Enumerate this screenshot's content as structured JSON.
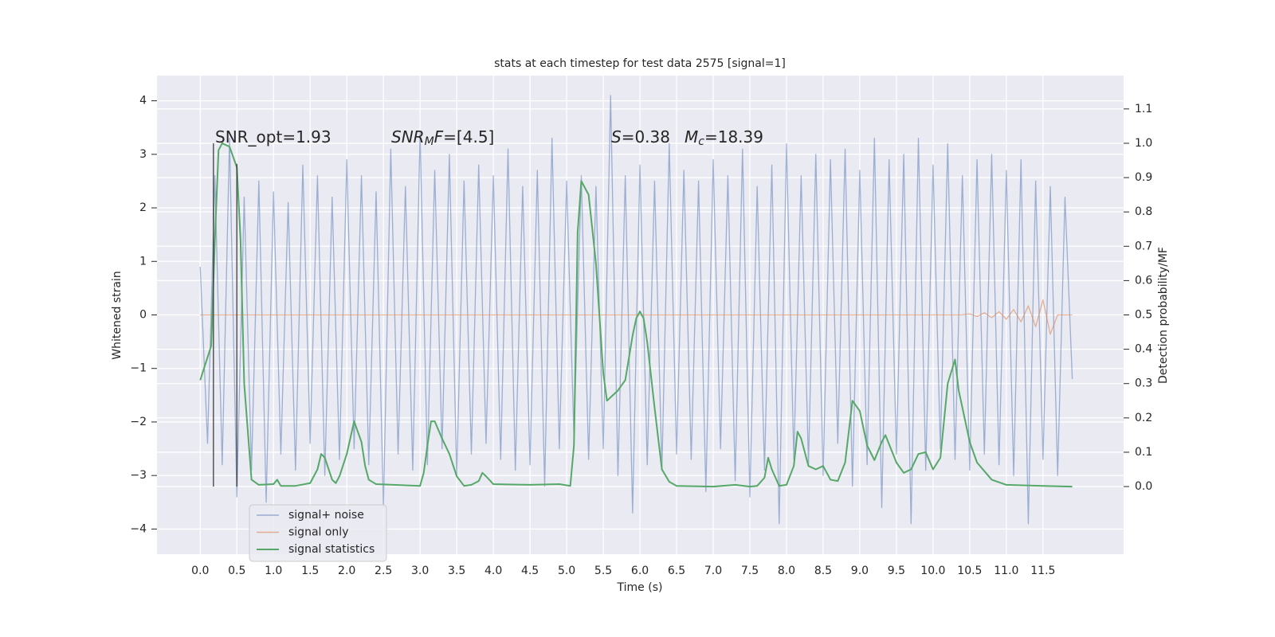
{
  "chart_data": {
    "type": "line",
    "title": "stats at each timestep for test data 2575 [signal=1]",
    "x_label": "Time (s)",
    "y_label": "Whitened strain",
    "y2_label": "Detection probability/MF",
    "grid": true,
    "legend": "lower left",
    "xlim": [
      -0.59,
      12.6
    ],
    "ylim": [
      -4.47,
      4.47
    ],
    "y2lim": [
      -0.197,
      1.197
    ],
    "xticks": [
      {
        "value": 0,
        "label": "0.0"
      },
      {
        "value": 0.5,
        "label": "0.5"
      },
      {
        "value": 1,
        "label": "1.0"
      },
      {
        "value": 1.5,
        "label": "1.5"
      },
      {
        "value": 2,
        "label": "2.0"
      },
      {
        "value": 2.5,
        "label": "2.5"
      },
      {
        "value": 3,
        "label": "3.0"
      },
      {
        "value": 3.5,
        "label": "3.5"
      },
      {
        "value": 4,
        "label": "4.0"
      },
      {
        "value": 4.5,
        "label": "4.5"
      },
      {
        "value": 5,
        "label": "5.0"
      },
      {
        "value": 5.5,
        "label": "5.5"
      },
      {
        "value": 6,
        "label": "6.0"
      },
      {
        "value": 6.5,
        "label": "6.5"
      },
      {
        "value": 7,
        "label": "7.0"
      },
      {
        "value": 7.5,
        "label": "7.5"
      },
      {
        "value": 8,
        "label": "8.0"
      },
      {
        "value": 8.5,
        "label": "8.5"
      },
      {
        "value": 9,
        "label": "9.0"
      },
      {
        "value": 9.5,
        "label": "9.5"
      },
      {
        "value": 10,
        "label": "10.0"
      },
      {
        "value": 10.5,
        "label": "10.5"
      },
      {
        "value": 11,
        "label": "11.0"
      },
      {
        "value": 11.5,
        "label": "11.5"
      }
    ],
    "yticks": [
      {
        "value": -4,
        "label": "−4"
      },
      {
        "value": -3,
        "label": "−3"
      },
      {
        "value": -2,
        "label": "−2"
      },
      {
        "value": -1,
        "label": "−1"
      },
      0,
      1,
      2,
      3,
      4
    ],
    "y2ticks": [
      {
        "value": 0,
        "label": "0.0"
      },
      {
        "value": 0.1,
        "label": "0.1"
      },
      {
        "value": 0.2,
        "label": "0.2"
      },
      {
        "value": 0.3,
        "label": "0.3"
      },
      {
        "value": 0.4,
        "label": "0.4"
      },
      {
        "value": 0.5,
        "label": "0.5"
      },
      {
        "value": 0.6,
        "label": "0.6"
      },
      {
        "value": 0.7,
        "label": "0.7"
      },
      {
        "value": 0.8,
        "label": "0.8"
      },
      {
        "value": 0.9,
        "label": "0.9"
      },
      {
        "value": 1,
        "label": "1.0"
      },
      {
        "value": 1.1,
        "label": "1.1"
      }
    ],
    "x": [
      0,
      0.1,
      0.2,
      0.3,
      0.4,
      0.5,
      0.6,
      0.7,
      0.8,
      0.9,
      1,
      1.1,
      1.2,
      1.3,
      1.4,
      1.5,
      1.6,
      1.7,
      1.8,
      1.9,
      2,
      2.1,
      2.2,
      2.3,
      2.4,
      2.5,
      2.6,
      2.7,
      2.8,
      2.9,
      3,
      3.1,
      3.2,
      3.3,
      3.4,
      3.5,
      3.6,
      3.7,
      3.8,
      3.9,
      4,
      4.1,
      4.2,
      4.3,
      4.4,
      4.5,
      4.6,
      4.7,
      4.8,
      4.9,
      5,
      5.1,
      5.2,
      5.3,
      5.4,
      5.5,
      5.6,
      5.7,
      5.8,
      5.9,
      6,
      6.1,
      6.2,
      6.3,
      6.4,
      6.5,
      6.6,
      6.7,
      6.8,
      6.9,
      7,
      7.1,
      7.2,
      7.3,
      7.4,
      7.5,
      7.6,
      7.7,
      7.8,
      7.9,
      8,
      8.1,
      8.2,
      8.3,
      8.4,
      8.5,
      8.6,
      8.7,
      8.8,
      8.9,
      9,
      9.1,
      9.2,
      9.3,
      9.4,
      9.5,
      9.6,
      9.7,
      9.8,
      9.9,
      10,
      10.1,
      10.2,
      10.3,
      10.4,
      10.5,
      10.6,
      10.7,
      10.8,
      10.9,
      11,
      11.1,
      11.2,
      11.3,
      11.4,
      11.5,
      11.6,
      11.7,
      11.8,
      11.9
    ],
    "series": [
      {
        "name": "signal+ noise",
        "color": "#4c72b0",
        "opacity": 0.5,
        "values": [
          0.9,
          -2.4,
          2.6,
          -2.8,
          3.3,
          -3.4,
          2.2,
          -2.9,
          2.5,
          -3.5,
          2.3,
          -2.6,
          2.1,
          -2.9,
          2.8,
          -2.4,
          2.6,
          -3.0,
          2.2,
          -2.7,
          2.9,
          -2.5,
          2.6,
          -2.8,
          2.3,
          -3.6,
          3.1,
          -2.6,
          2.4,
          -2.9,
          3.4,
          -2.8,
          2.7,
          -2.5,
          3.0,
          -3.0,
          2.5,
          -2.6,
          2.8,
          -2.4,
          2.6,
          -2.7,
          3.1,
          -2.9,
          2.4,
          -2.8,
          2.7,
          -3.2,
          3.3,
          -2.5,
          2.5,
          -2.3,
          2.6,
          -2.7,
          2.4,
          -2.5,
          4.1,
          -3.0,
          2.6,
          -3.7,
          2.8,
          -2.8,
          2.5,
          -2.9,
          3.2,
          -2.6,
          2.7,
          -2.7,
          2.5,
          -3.3,
          2.9,
          -2.5,
          2.6,
          -3.1,
          3.1,
          -3.4,
          2.4,
          -2.9,
          2.8,
          -3.9,
          3.2,
          -2.7,
          2.6,
          -2.8,
          3.0,
          -3.0,
          2.9,
          -2.4,
          3.1,
          -3.2,
          2.7,
          -2.8,
          3.3,
          -3.6,
          2.9,
          -2.6,
          3.0,
          -3.9,
          3.3,
          -2.9,
          2.8,
          -2.5,
          3.2,
          -2.7,
          2.6,
          -2.9,
          2.9,
          -2.6,
          3.0,
          -2.8,
          2.7,
          -3.0,
          2.9,
          -3.9,
          2.5,
          -2.7,
          2.4,
          -3.0,
          2.2,
          -1.2
        ]
      },
      {
        "name": "signal only",
        "color": "#dd8452",
        "opacity": 0.6,
        "values": [
          0,
          0,
          0,
          0,
          0,
          0,
          0,
          0,
          0,
          0,
          0,
          0,
          0,
          0,
          0,
          0,
          0,
          0,
          0,
          0,
          0,
          0,
          0,
          0,
          0,
          0,
          0,
          0,
          0,
          0,
          0,
          0,
          0,
          0,
          0,
          0,
          0,
          0,
          0,
          0,
          0,
          0,
          0,
          0,
          0,
          0,
          0,
          0,
          0,
          0,
          0,
          0,
          0,
          0,
          0,
          0,
          0,
          0,
          0,
          0,
          0,
          0,
          0,
          0,
          0,
          0,
          0,
          0,
          0,
          0,
          0,
          0,
          0,
          0,
          0,
          0,
          0,
          0,
          0,
          0,
          0,
          0,
          0,
          0,
          0,
          0,
          0,
          0,
          0,
          0,
          0,
          0,
          0,
          0,
          0,
          0,
          0,
          0,
          0,
          0,
          0,
          0,
          0,
          0,
          0,
          0.02,
          -0.03,
          0.04,
          -0.05,
          0.06,
          -0.08,
          0.1,
          -0.13,
          0.17,
          -0.22,
          0.28,
          -0.36,
          0,
          0,
          0
        ]
      },
      {
        "name": "signal statistics",
        "color": "#55a868",
        "opacity": 1,
        "axis": "y2",
        "x": [
          0,
          0.15,
          0.2,
          0.25,
          0.3,
          0.4,
          0.5,
          0.55,
          0.6,
          0.7,
          0.8,
          1,
          1.05,
          1.1,
          1.3,
          1.5,
          1.6,
          1.65,
          1.7,
          1.8,
          1.85,
          1.9,
          2,
          2.1,
          2.2,
          2.25,
          2.3,
          2.4,
          3,
          3.05,
          3.1,
          3.15,
          3.2,
          3.3,
          3.4,
          3.5,
          3.6,
          3.7,
          3.8,
          3.85,
          3.9,
          4,
          4.5,
          4.9,
          5.05,
          5.1,
          5.15,
          5.2,
          5.3,
          5.4,
          5.5,
          5.55,
          5.6,
          5.7,
          5.8,
          5.9,
          5.95,
          6,
          6.05,
          6.1,
          6.2,
          6.3,
          6.4,
          6.5,
          7,
          7.3,
          7.5,
          7.6,
          7.7,
          7.75,
          7.8,
          7.9,
          8,
          8.1,
          8.15,
          8.2,
          8.3,
          8.4,
          8.5,
          8.6,
          8.7,
          8.8,
          8.9,
          9,
          9.1,
          9.2,
          9.3,
          9.35,
          9.5,
          9.6,
          9.7,
          9.8,
          9.9,
          10,
          10.1,
          10.2,
          10.3,
          10.35,
          10.5,
          10.6,
          10.8,
          11,
          11.5,
          11.9
        ],
        "values": [
          0.31,
          0.41,
          0.72,
          0.98,
          1.0,
          0.99,
          0.93,
          0.72,
          0.3,
          0.02,
          0.005,
          0.007,
          0.02,
          0.002,
          0.002,
          0.01,
          0.05,
          0.095,
          0.084,
          0.02,
          0.01,
          0.03,
          0.095,
          0.19,
          0.13,
          0.06,
          0.02,
          0.007,
          0.002,
          0.04,
          0.12,
          0.19,
          0.19,
          0.14,
          0.095,
          0.03,
          0.002,
          0.005,
          0.016,
          0.04,
          0.03,
          0.007,
          0.005,
          0.007,
          0.002,
          0.12,
          0.74,
          0.89,
          0.85,
          0.65,
          0.33,
          0.25,
          0.26,
          0.28,
          0.31,
          0.44,
          0.49,
          0.51,
          0.49,
          0.42,
          0.23,
          0.05,
          0.014,
          0.002,
          0,
          0.005,
          0,
          0.002,
          0.026,
          0.084,
          0.05,
          0.002,
          0.005,
          0.06,
          0.16,
          0.14,
          0.06,
          0.05,
          0.06,
          0.02,
          0.016,
          0.07,
          0.25,
          0.22,
          0.12,
          0.077,
          0.13,
          0.15,
          0.07,
          0.04,
          0.05,
          0.095,
          0.1,
          0.05,
          0.084,
          0.3,
          0.37,
          0.28,
          0.13,
          0.07,
          0.02,
          0.005,
          0.002,
          0
        ]
      }
    ],
    "vlines": [
      {
        "x": 0.18,
        "y2lim": [
          0,
          1.0
        ]
      },
      {
        "x": 0.5,
        "y2lim": [
          0,
          0.94
        ]
      }
    ],
    "annotations": [
      {
        "segments": [
          {
            "text": "SNR_opt=1.93",
            "style": "normal"
          }
        ]
      },
      {
        "segments": [
          {
            "text": "SNR",
            "style": "italic"
          },
          {
            "text": "M",
            "style": "italic-sub"
          },
          {
            "text": "F",
            "style": "italic"
          },
          {
            "text": "=[4.5]",
            "style": "normal"
          }
        ]
      },
      {
        "segments": [
          {
            "text": "S",
            "style": "italic"
          },
          {
            "text": "=0.38",
            "style": "normal"
          }
        ]
      },
      {
        "segments": [
          {
            "text": "M",
            "style": "italic"
          },
          {
            "text": "c",
            "style": "italic-sub"
          },
          {
            "text": "=18.39",
            "style": "normal"
          }
        ]
      }
    ]
  }
}
